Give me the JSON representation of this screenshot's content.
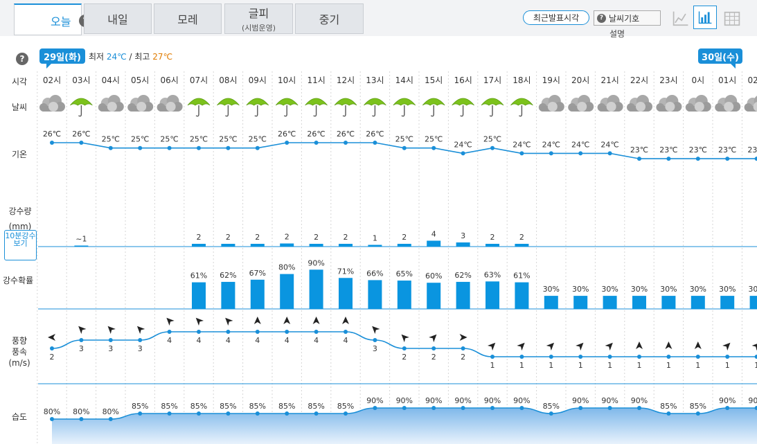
{
  "tabs": [
    {
      "label": "오늘",
      "sub": ""
    },
    {
      "label": "내일",
      "sub": ""
    },
    {
      "label": "모레",
      "sub": ""
    },
    {
      "label": "글피",
      "sub": "(시범운영)"
    },
    {
      "label": "중기",
      "sub": ""
    }
  ],
  "toolbar": {
    "recent_label": "최근발표시각",
    "legend_label": "날씨기호",
    "legend_desc": "설명",
    "help": "?"
  },
  "summary": {
    "day1": "29일(화)",
    "day2": "30일(수)",
    "min_label": "최저",
    "min_value": "24℃",
    "sep": "/",
    "max_label": "최고",
    "max_value": "27℃"
  },
  "row_labels": {
    "time": "시각",
    "weather": "날씨",
    "temp": "기온",
    "rain_amount_1": "강수량",
    "rain_amount_2": "(mm)",
    "rain_prob": "강수확률",
    "wind_1": "풍향",
    "wind_2": "풍속",
    "wind_3": "(m/s)",
    "humidity": "습도"
  },
  "ten_min_button": "10분강수보기",
  "hours": [
    "02시",
    "03시",
    "04시",
    "05시",
    "06시",
    "07시",
    "08시",
    "09시",
    "10시",
    "11시",
    "12시",
    "13시",
    "14시",
    "15시",
    "16시",
    "17시",
    "18시",
    "19시",
    "20시",
    "21시",
    "22시",
    "23시",
    "0시",
    "01시",
    "02시"
  ],
  "weather": [
    "cloudy-rain-icon",
    "umbrella-icon",
    "cloudy-rain-icon",
    "cloudy-rain-icon",
    "cloudy-rain-icon",
    "umbrella-icon",
    "umbrella-icon",
    "umbrella-icon",
    "umbrella-icon",
    "umbrella-icon",
    "umbrella-icon",
    "umbrella-icon",
    "umbrella-icon",
    "umbrella-icon",
    "umbrella-icon",
    "umbrella-icon",
    "umbrella-icon",
    "cloudy-icon",
    "cloudy-icon",
    "cloudy-icon",
    "cloudy-icon",
    "cloudy-icon",
    "cloudy-icon",
    "cloudy-icon",
    "cloudy-icon"
  ],
  "temperature": [
    26,
    26,
    25,
    25,
    25,
    25,
    25,
    25,
    26,
    26,
    26,
    26,
    25,
    25,
    24,
    25,
    24,
    24,
    24,
    24,
    23,
    23,
    23,
    23,
    23
  ],
  "precip_amount": [
    "",
    "~1",
    "",
    "",
    "",
    "2",
    "2",
    "2",
    "2",
    "2",
    "2",
    "1",
    "2",
    "4",
    "3",
    "2",
    "2",
    "",
    "",
    "",
    "",
    "",
    "",
    "",
    ""
  ],
  "precip_level": [
    0,
    0.2,
    0,
    0,
    0,
    0.8,
    0.8,
    0.8,
    0.9,
    0.8,
    0.8,
    0.5,
    0.8,
    1.7,
    1.2,
    0.8,
    0.8,
    0,
    0,
    0,
    0,
    0,
    0,
    0,
    0
  ],
  "precip_prob": [
    null,
    null,
    null,
    null,
    null,
    61,
    62,
    67,
    80,
    90,
    71,
    66,
    65,
    60,
    62,
    63,
    61,
    30,
    30,
    30,
    30,
    30,
    30,
    30,
    30
  ],
  "wind_speed": [
    2,
    3,
    3,
    3,
    4,
    4,
    4,
    4,
    4,
    4,
    4,
    3,
    2,
    2,
    2,
    1,
    1,
    1,
    1,
    1,
    1,
    1,
    1,
    1,
    1
  ],
  "wind_dir_deg": [
    270,
    315,
    315,
    315,
    315,
    315,
    315,
    0,
    0,
    0,
    0,
    315,
    315,
    45,
    90,
    45,
    45,
    45,
    45,
    45,
    0,
    0,
    0,
    45,
    45
  ],
  "humidity": [
    80,
    80,
    80,
    85,
    85,
    85,
    85,
    85,
    85,
    85,
    85,
    90,
    90,
    90,
    90,
    90,
    90,
    85,
    90,
    90,
    90,
    85,
    85,
    90,
    90
  ],
  "colors": {
    "accent": "#1a8fd8",
    "temp_line": "#1a8fd8",
    "bar": "#0a95e0",
    "max_temp": "#e07b00",
    "umbrella": "#7cc21c",
    "cloud": "#9a9a9a"
  }
}
